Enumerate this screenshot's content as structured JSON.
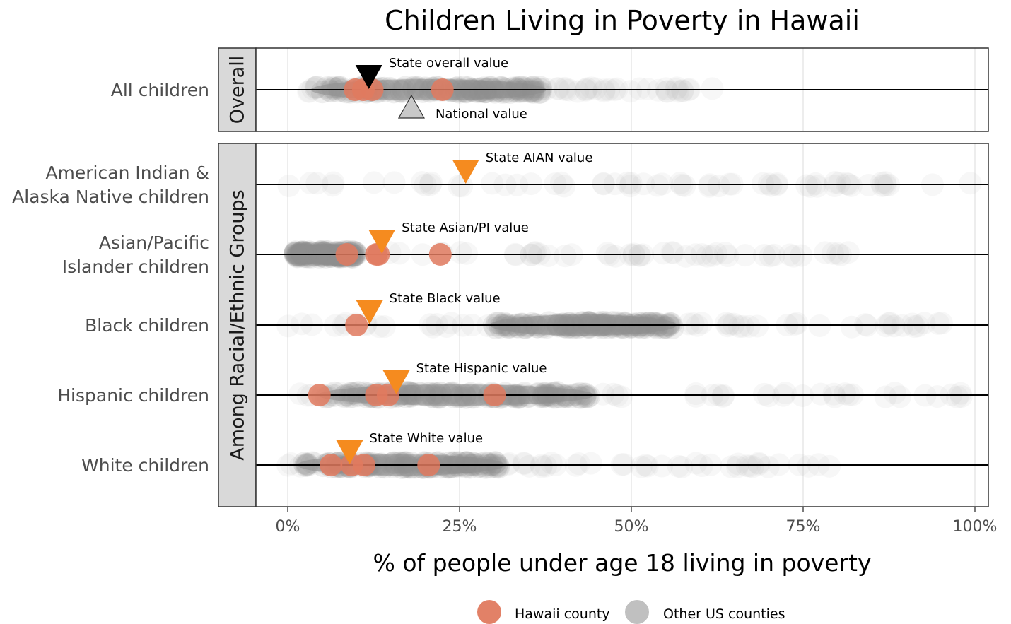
{
  "chart_data": {
    "type": "scatter",
    "title": "Children Living in Poverty in Hawaii",
    "xlabel": "% of people under age 18 living in poverty",
    "xlim": [
      0,
      100
    ],
    "x_ticks": [
      0,
      25,
      50,
      75,
      100
    ],
    "x_tick_labels": [
      "0%",
      "25%",
      "50%",
      "75%",
      "100%"
    ],
    "grid": true,
    "legend_position": "bottom",
    "panels": [
      {
        "strip": "Overall",
        "rows": [
          {
            "label": "All children",
            "hawaii_counties": [
              9.8,
              11.0,
              12.3,
              22.5
            ],
            "markers": [
              {
                "label": "State overall value",
                "value": 11.8,
                "direction": "down",
                "color": "#000000"
              },
              {
                "label": "National value",
                "value": 18.0,
                "direction": "up",
                "color": "#c8c8c8"
              }
            ],
            "us_range": [
              3,
              62
            ],
            "us_core": [
              4,
              37
            ]
          }
        ]
      },
      {
        "strip": "Among Racial/Ethnic Groups",
        "rows": [
          {
            "label": [
              "American Indian &",
              "Alaska Native children"
            ],
            "hawaii_counties": [],
            "markers": [
              {
                "label": "State AIAN value",
                "value": 25.9,
                "direction": "down",
                "color": "#f58b1f"
              }
            ],
            "us_range": [
              0,
              100
            ],
            "us_core": null
          },
          {
            "label": [
              "Asian/Pacific",
              "Islander children"
            ],
            "hawaii_counties": [
              8.6,
              12.9,
              13.2,
              22.2
            ],
            "markers": [
              {
                "label": "State Asian/PI value",
                "value": 13.7,
                "direction": "down",
                "color": "#f58b1f"
              }
            ],
            "us_range": [
              0,
              82
            ],
            "us_core": [
              1,
              10
            ]
          },
          {
            "label": "Black children",
            "hawaii_counties": [
              10.0
            ],
            "markers": [
              {
                "label": "State Black value",
                "value": 11.9,
                "direction": "down",
                "color": "#f58b1f"
              }
            ],
            "us_range": [
              0,
              100
            ],
            "us_core": [
              30,
              56
            ]
          },
          {
            "label": "Hispanic children",
            "hawaii_counties": [
              4.6,
              12.9,
              14.6,
              30.1
            ],
            "markers": [
              {
                "label": "State Hispanic value",
                "value": 15.8,
                "direction": "down",
                "color": "#f58b1f"
              }
            ],
            "us_range": [
              0,
              100
            ],
            "us_core": [
              5,
              44
            ]
          },
          {
            "label": "White children",
            "hawaii_counties": [
              6.3,
              9.3,
              11.1,
              20.5
            ],
            "markers": [
              {
                "label": "State White value",
                "value": 9.0,
                "direction": "down",
                "color": "#f58b1f"
              }
            ],
            "us_range": [
              0,
              80
            ],
            "us_core": [
              2,
              31
            ]
          }
        ]
      }
    ],
    "legend": [
      {
        "label": "Hawaii county",
        "color": "#e07a5f"
      },
      {
        "label": "Other US counties",
        "color": "#bdbdbd"
      }
    ]
  }
}
